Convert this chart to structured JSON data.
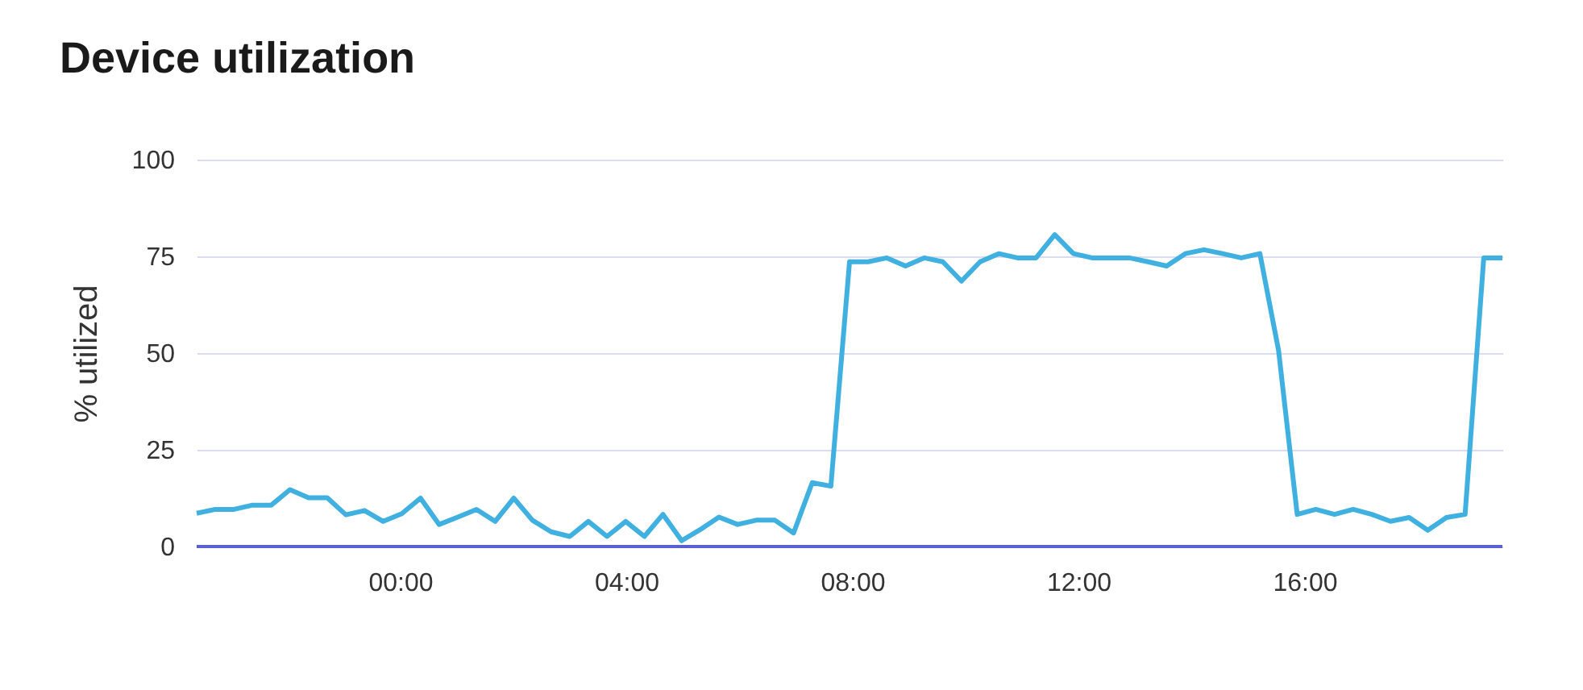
{
  "chart_data": {
    "type": "line",
    "title": "Device utilization",
    "ylabel": "% utilized",
    "x": [
      -3.6,
      -3.27,
      -2.94,
      -2.61,
      -2.28,
      -1.95,
      -1.62,
      -1.29,
      -0.96,
      -0.63,
      -0.3,
      0.03,
      0.36,
      0.69,
      1.02,
      1.35,
      1.68,
      2.01,
      2.34,
      2.67,
      3.0,
      3.33,
      3.66,
      3.99,
      4.32,
      4.65,
      4.98,
      5.31,
      5.64,
      5.97,
      6.3,
      6.63,
      6.96,
      7.29,
      7.62,
      7.95,
      8.28,
      8.61,
      8.94,
      9.27,
      9.6,
      9.93,
      10.26,
      10.59,
      10.92,
      11.25,
      11.58,
      11.91,
      12.24,
      12.57,
      12.9,
      13.23,
      13.56,
      13.89,
      14.22,
      14.55,
      14.88,
      15.21,
      15.54,
      15.87,
      16.2,
      16.53,
      16.86,
      17.19,
      17.52,
      17.85,
      18.18,
      18.51,
      18.84,
      19.17,
      19.5
    ],
    "series": [
      {
        "color": "#3fb0e0",
        "values": [
          8.6,
          9.6,
          9.6,
          10.7,
          10.7,
          14.7,
          12.6,
          12.6,
          8.2,
          9.3,
          6.5,
          8.5,
          12.5,
          5.7,
          7.6,
          9.6,
          6.5,
          12.5,
          6.8,
          3.8,
          2.6,
          6.5,
          2.6,
          6.5,
          2.6,
          8.3,
          1.5,
          4.4,
          7.6,
          5.7,
          6.8,
          6.8,
          3.5,
          16.5,
          15.6,
          73.6,
          73.6,
          74.6,
          72.5,
          74.6,
          73.6,
          68.6,
          73.6,
          75.7,
          74.6,
          74.6,
          80.6,
          75.7,
          74.6,
          74.6,
          74.6,
          73.6,
          72.5,
          75.7,
          76.7,
          75.7,
          74.6,
          75.7,
          50.7,
          8.3,
          9.6,
          8.3,
          9.6,
          8.3,
          6.5,
          7.5,
          4.2,
          7.5,
          8.3,
          74.6,
          74.6
        ]
      }
    ],
    "xlim": [
      -3.6,
      19.5
    ],
    "xticks": [
      {
        "value": 0,
        "label": "00:00"
      },
      {
        "value": 4,
        "label": "04:00"
      },
      {
        "value": 8,
        "label": "08:00"
      },
      {
        "value": 12,
        "label": "12:00"
      },
      {
        "value": 16,
        "label": "16:00"
      }
    ],
    "ylim": [
      0,
      100
    ],
    "yticks": [
      0,
      25,
      50,
      75,
      100
    ],
    "grid": "y",
    "marker": "none",
    "line_style": "solid"
  }
}
